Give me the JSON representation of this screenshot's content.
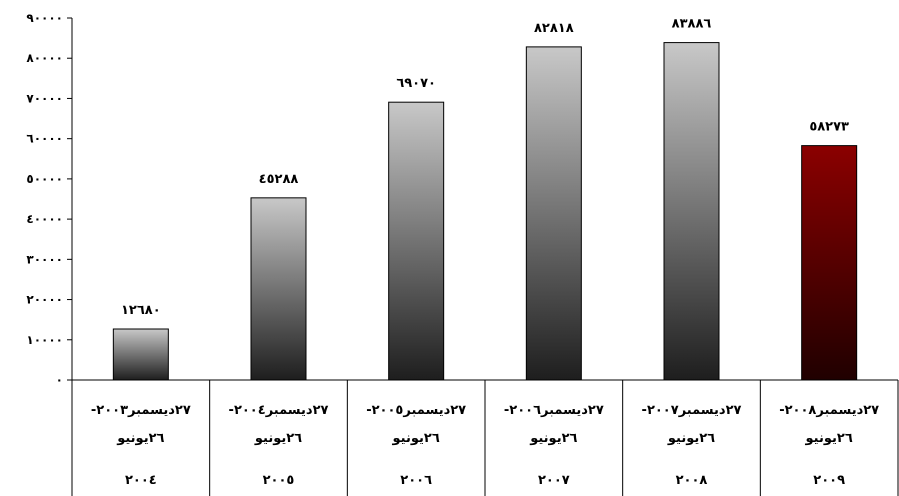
{
  "chart_data": {
    "type": "bar",
    "categories": [
      [
        "٢٧ديسمبر٢٠٠٣-",
        "٢٦يونيو",
        "٢٠٠٤"
      ],
      [
        "٢٧ديسمبر٢٠٠٤-",
        "٢٦يونيو",
        "٢٠٠٥"
      ],
      [
        "٢٧ديسمبر٢٠٠٥-",
        "٢٦يونيو",
        "٢٠٠٦"
      ],
      [
        "٢٧ديسمبر٢٠٠٦-",
        "٢٦يونيو",
        "٢٠٠٧"
      ],
      [
        "٢٧ديسمبر٢٠٠٧-",
        "٢٦يونيو",
        "٢٠٠٨"
      ],
      [
        "٢٧ديسمبر٢٠٠٨-",
        "٢٦يونيو",
        "٢٠٠٩"
      ]
    ],
    "values": [
      12680,
      45288,
      69070,
      82818,
      83886,
      58273
    ],
    "value_labels": [
      "١٢٦٨٠",
      "٤٥٢٨٨",
      "٦٩٠٧٠",
      "٨٢٨١٨",
      "٨٣٨٨٦",
      "٥٨٢٧٣"
    ],
    "ylim": [
      0,
      90000
    ],
    "yticks": [
      0,
      10000,
      20000,
      30000,
      40000,
      50000,
      60000,
      70000,
      80000,
      90000
    ],
    "ytick_labels": [
      "٠",
      "١٠٠٠٠",
      "٢٠٠٠٠",
      "٣٠٠٠٠",
      "٤٠٠٠٠",
      "٥٠٠٠٠",
      "٦٠٠٠٠",
      "٧٠٠٠٠",
      "٨٠٠٠٠",
      "٩٠٠٠٠"
    ],
    "grid": false,
    "legend": "none",
    "bar_colors": [
      {
        "top": "#c8c8c8",
        "bottom": "#1e1e1e"
      },
      {
        "top": "#c8c8c8",
        "bottom": "#1e1e1e"
      },
      {
        "top": "#c8c8c8",
        "bottom": "#1e1e1e"
      },
      {
        "top": "#c8c8c8",
        "bottom": "#1e1e1e"
      },
      {
        "top": "#c8c8c8",
        "bottom": "#1e1e1e"
      },
      {
        "top": "#8b0000",
        "bottom": "#200000"
      }
    ]
  }
}
